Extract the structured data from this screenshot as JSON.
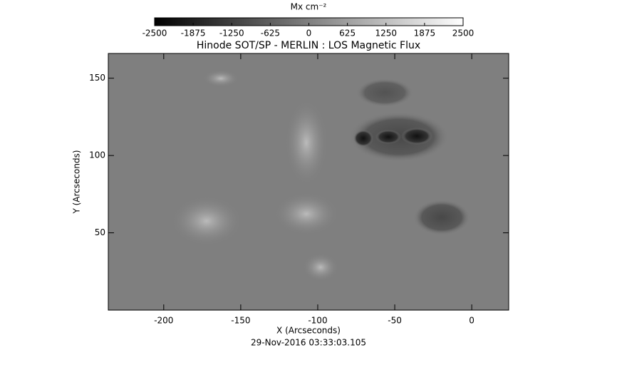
{
  "chart_data": {
    "type": "image",
    "title": "Hinode SOT/SP - MERLIN : LOS Magnetic Flux",
    "colorbar": {
      "label": "Mx cm⁻²",
      "lim": [
        -2500,
        2500
      ],
      "ticks": [
        -2500,
        -1875,
        -1250,
        -625,
        0,
        625,
        1250,
        1875,
        2500
      ]
    },
    "xlabel": "X (Arcseconds)",
    "ylabel": "Y (Arcseconds)",
    "xlim": [
      -236,
      24
    ],
    "ylim": [
      0,
      166
    ],
    "xticks": [
      -200,
      -150,
      -100,
      -50,
      0
    ],
    "yticks": [
      50,
      100,
      150
    ],
    "footer": "29-Nov-2016 03:33:03.105"
  }
}
